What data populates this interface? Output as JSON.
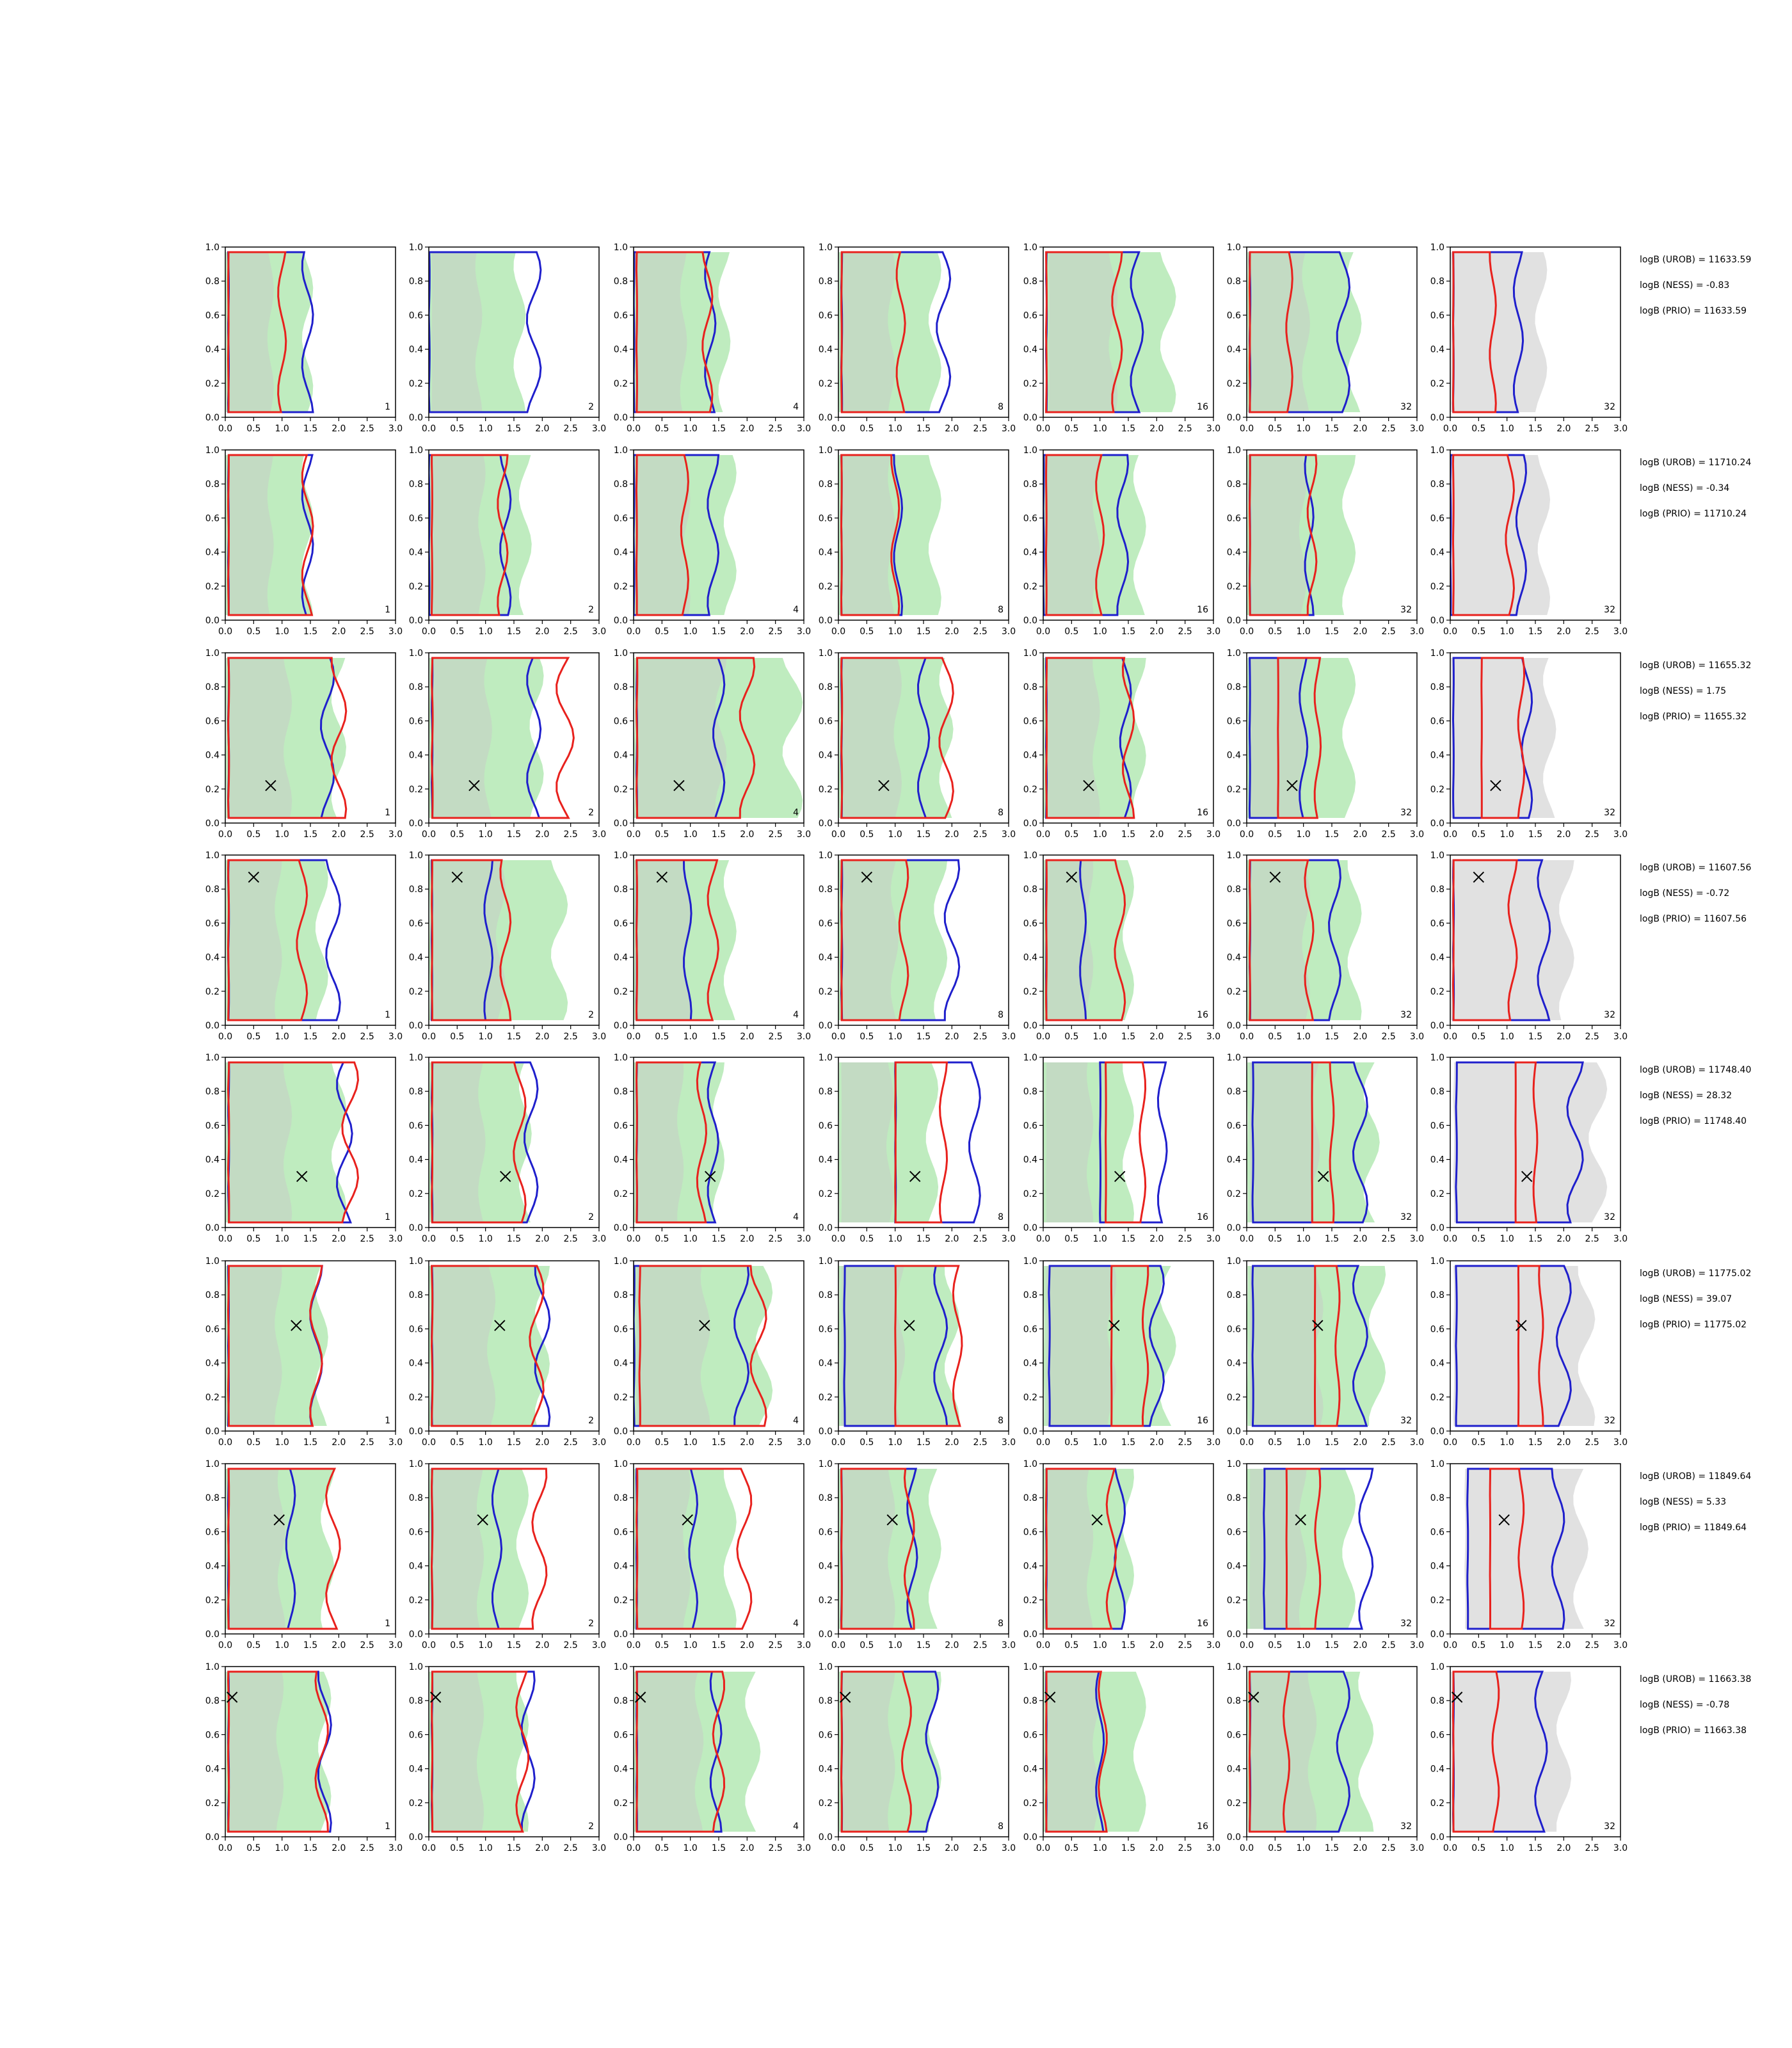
{
  "chart_data": {
    "type": "contour-grid",
    "xlim": [
      0,
      3
    ],
    "ylim": [
      0,
      1
    ],
    "xticks": [
      "0.0",
      "0.5",
      "1.0",
      "1.5",
      "2.0",
      "2.5",
      "3.0"
    ],
    "yticks": [
      "0.0",
      "0.2",
      "0.4",
      "0.6",
      "0.8",
      "1.0"
    ],
    "colors": {
      "red": "#e8211d",
      "blue": "#1f1fcc",
      "green_fill": "#b8eab8",
      "grey_fill": "#c8c8c8",
      "marker": "#000000"
    },
    "panel_labels": [
      "1",
      "2",
      "4",
      "8",
      "16",
      "32",
      "32"
    ],
    "rows": [
      {
        "truth": null,
        "stats": [
          "logB (UROB) = 11633.59",
          "logB (NESS) = -0.83",
          "logB (PRIO) = 11633.59"
        ],
        "green": [
          [
            0.0,
            1.45
          ],
          [
            0.0,
            1.6
          ],
          [
            0.0,
            1.6
          ],
          [
            0.0,
            1.7
          ],
          [
            0.05,
            2.2
          ],
          [
            0.0,
            1.9
          ],
          [
            0.0,
            0.0
          ]
        ],
        "blue": [
          [
            0.05,
            1.45
          ],
          [
            0.0,
            1.85
          ],
          [
            0.0,
            1.35
          ],
          [
            0.05,
            1.85
          ],
          [
            0.05,
            1.65
          ],
          [
            0.05,
            1.7
          ],
          [
            0.05,
            1.2
          ]
        ],
        "red": [
          [
            0.05,
            1.0
          ],
          [
            0,
            0
          ],
          [
            0.05,
            1.3
          ],
          [
            0.05,
            1.1
          ],
          [
            0.05,
            1.3
          ],
          [
            0.05,
            0.75
          ],
          [
            0.05,
            0.75
          ]
        ]
      },
      {
        "truth": null,
        "stats": [
          "logB (UROB) = 11710.24",
          "logB (NESS) = -0.34",
          "logB (PRIO) = 11710.24"
        ],
        "green": [
          [
            0.0,
            1.45
          ],
          [
            0.0,
            1.7
          ],
          [
            0.0,
            1.7
          ],
          [
            0.0,
            1.7
          ],
          [
            0.0,
            1.7
          ],
          [
            0.0,
            1.8
          ],
          [
            0.0,
            0.0
          ]
        ],
        "blue": [
          [
            0.05,
            1.45
          ],
          [
            0.0,
            1.35
          ],
          [
            0.0,
            1.4
          ],
          [
            0.05,
            1.05
          ],
          [
            0.0,
            1.4
          ],
          [
            0.05,
            1.1
          ],
          [
            0.0,
            1.25
          ]
        ],
        "red": [
          [
            0.05,
            1.45
          ],
          [
            0.05,
            1.3
          ],
          [
            0.05,
            0.9
          ],
          [
            0.05,
            1.0
          ],
          [
            0.05,
            1.0
          ],
          [
            0.05,
            1.15
          ],
          [
            0.05,
            1.05
          ]
        ]
      },
      {
        "truth": [
          0.8,
          0.22
        ],
        "stats": [
          "logB (UROB) = 11655.32",
          "logB (NESS) = 1.75",
          "logB (PRIO) = 11655.32"
        ],
        "green": [
          [
            0.0,
            2.0
          ],
          [
            0.0,
            1.9
          ],
          [
            0.0,
            2.8
          ],
          [
            0.0,
            1.9
          ],
          [
            0.0,
            1.7
          ],
          [
            0.0,
            1.8
          ],
          [
            0.0,
            0.0
          ]
        ],
        "blue": [
          [
            0.05,
            1.8
          ],
          [
            0.05,
            1.85
          ],
          [
            0.05,
            1.5
          ],
          [
            0.05,
            1.5
          ],
          [
            0.05,
            1.45
          ],
          [
            0.05,
            1.0
          ],
          [
            0.05,
            1.35
          ]
        ],
        "red": [
          [
            0.05,
            2.0
          ],
          [
            0.05,
            2.4
          ],
          [
            0.05,
            2.0
          ],
          [
            0.05,
            1.9
          ],
          [
            0.05,
            1.5
          ],
          [
            0.55,
            1.25
          ],
          [
            0.55,
            1.25
          ]
        ]
      },
      {
        "truth": [
          0.5,
          0.87
        ],
        "stats": [
          "logB (UROB) = 11607.56",
          "logB (NESS) = -0.72",
          "logB (PRIO) = 11607.56"
        ],
        "green": [
          [
            0.0,
            1.7
          ],
          [
            0.0,
            2.3
          ],
          [
            0.0,
            1.7
          ],
          [
            0.0,
            1.8
          ],
          [
            0.0,
            1.5
          ],
          [
            0.0,
            1.9
          ],
          [
            0.0,
            0.0
          ]
        ],
        "blue": [
          [
            0.05,
            1.9
          ],
          [
            0.05,
            1.05
          ],
          [
            0.05,
            0.95
          ],
          [
            0.05,
            2.0
          ],
          [
            0.05,
            0.7
          ],
          [
            0.05,
            1.55
          ],
          [
            0.05,
            1.65
          ]
        ],
        "red": [
          [
            0.05,
            1.35
          ],
          [
            0.05,
            1.35
          ],
          [
            0.05,
            1.4
          ],
          [
            0.05,
            1.15
          ],
          [
            0.05,
            1.35
          ],
          [
            0.05,
            1.1
          ],
          [
            0.05,
            1.1
          ]
        ]
      },
      {
        "truth": [
          1.35,
          0.3
        ],
        "stats": [
          "logB (UROB) = 11748.40",
          "logB (NESS) = 28.32",
          "logB (PRIO) = 11748.40"
        ],
        "green": [
          [
            0.0,
            2.0
          ],
          [
            0.0,
            1.7
          ],
          [
            0.0,
            1.5
          ],
          [
            0.0,
            1.65
          ],
          [
            0.0,
            1.5
          ],
          [
            0.0,
            2.2
          ],
          [
            0.0,
            0.0
          ]
        ],
        "blue": [
          [
            0.05,
            2.1
          ],
          [
            0.05,
            1.8
          ],
          [
            0.05,
            1.4
          ],
          [
            1.0,
            2.4
          ],
          [
            1.0,
            2.1
          ],
          [
            0.1,
            2.0
          ],
          [
            0.1,
            2.2
          ]
        ],
        "red": [
          [
            0.05,
            2.2
          ],
          [
            0.05,
            1.6
          ],
          [
            0.05,
            1.2
          ],
          [
            1.0,
            1.85
          ],
          [
            1.1,
            1.75
          ],
          [
            1.15,
            1.5
          ],
          [
            1.15,
            1.5
          ]
        ]
      },
      {
        "truth": [
          1.25,
          0.62
        ],
        "stats": [
          "logB (UROB) = 11775.02",
          "logB (NESS) = 39.07",
          "logB (PRIO) = 11775.02"
        ],
        "green": [
          [
            0.0,
            1.7
          ],
          [
            0.0,
            2.0
          ],
          [
            0.0,
            2.3
          ],
          [
            0.0,
            2.0
          ],
          [
            0.0,
            2.2
          ],
          [
            0.0,
            2.3
          ],
          [
            0.0,
            0.0
          ]
        ],
        "blue": [
          [
            0.05,
            1.6
          ],
          [
            0.05,
            2.0
          ],
          [
            0.0,
            1.9
          ],
          [
            0.1,
            1.8
          ],
          [
            0.1,
            2.0
          ],
          [
            0.1,
            2.0
          ],
          [
            0.1,
            2.0
          ]
        ],
        "red": [
          [
            0.05,
            1.6
          ],
          [
            0.05,
            1.9
          ],
          [
            0.1,
            2.2
          ],
          [
            1.0,
            2.1
          ],
          [
            1.2,
            1.8
          ],
          [
            1.2,
            1.6
          ],
          [
            1.2,
            1.6
          ]
        ]
      },
      {
        "truth": [
          0.95,
          0.67
        ],
        "stats": [
          "logB (UROB) = 11849.64",
          "logB (NESS) = 5.33",
          "logB (PRIO) = 11849.64"
        ],
        "green": [
          [
            0.0,
            1.8
          ],
          [
            0.0,
            1.65
          ],
          [
            0.0,
            1.7
          ],
          [
            0.0,
            1.7
          ],
          [
            0.0,
            1.5
          ],
          [
            0.0,
            1.8
          ],
          [
            0.0,
            0.0
          ]
        ],
        "blue": [
          [
            0.05,
            1.15
          ],
          [
            0.05,
            1.2
          ],
          [
            0.05,
            1.05
          ],
          [
            0.05,
            1.3
          ],
          [
            0.05,
            1.35
          ],
          [
            0.3,
            2.1
          ],
          [
            0.3,
            1.9
          ]
        ],
        "red": [
          [
            0.05,
            1.9
          ],
          [
            0.05,
            1.95
          ],
          [
            0.05,
            1.95
          ],
          [
            0.05,
            1.25
          ],
          [
            0.05,
            1.2
          ],
          [
            0.7,
            1.25
          ],
          [
            0.7,
            1.25
          ]
        ]
      },
      {
        "truth": [
          0.12,
          0.82
        ],
        "stats": [
          "logB (UROB) = 11663.38",
          "logB (NESS) = -0.78",
          "logB (PRIO) = 11663.38"
        ],
        "green": [
          [
            0.0,
            1.75
          ],
          [
            0.0,
            1.65
          ],
          [
            0.0,
            2.1
          ],
          [
            0.0,
            1.7
          ],
          [
            0.0,
            1.7
          ],
          [
            0.0,
            2.1
          ],
          [
            0.0,
            0.0
          ]
        ],
        "blue": [
          [
            0.05,
            1.75
          ],
          [
            0.05,
            1.75
          ],
          [
            0.05,
            1.45
          ],
          [
            0.05,
            1.65
          ],
          [
            0.05,
            1.0
          ],
          [
            0.05,
            1.7
          ],
          [
            0.05,
            1.6
          ]
        ],
        "red": [
          [
            0.05,
            1.7
          ],
          [
            0.05,
            1.65
          ],
          [
            0.05,
            1.5
          ],
          [
            0.05,
            1.2
          ],
          [
            0.05,
            1.05
          ],
          [
            0.05,
            0.7
          ],
          [
            0.05,
            0.8
          ]
        ]
      }
    ]
  }
}
